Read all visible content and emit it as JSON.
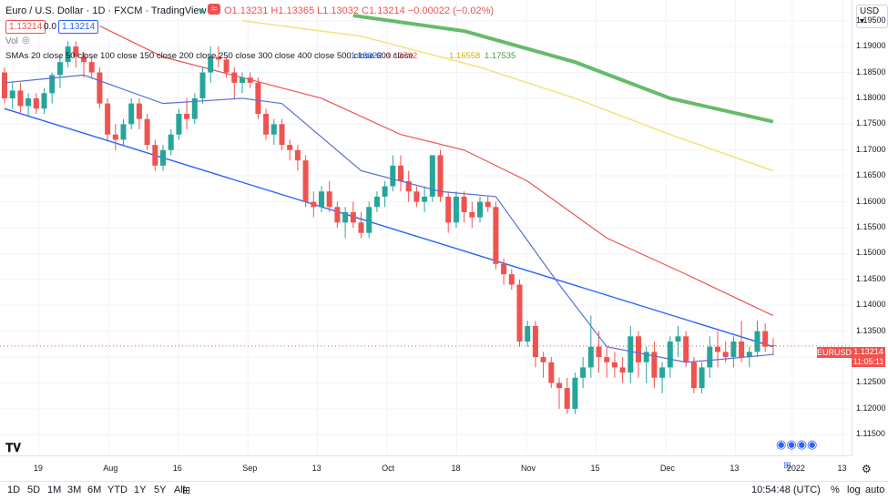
{
  "header": {
    "title": "Euro / U.S. Dollar · 1D · FXCM · TradingView",
    "ohlc": "O1.13231 H1.13365 L1.13032 C1.13214 −0.00022 (−0.02%)",
    "bid": "1.13214",
    "spread": "0.0",
    "ask": "1.13214",
    "vol_label": "Vol",
    "sma_label": "SMAs 20 close 50 close 100 close 150 close 200 close 250 close 300 close 400 close 500 close 600 close",
    "sma_values": [
      "1.13022",
      "1.13792",
      "1.16558",
      "1.17535"
    ],
    "currency": "USD",
    "symbol_tag": "EURUSD",
    "price_tag": "1.13214",
    "countdown": "11:05:11"
  },
  "colors": {
    "up": "#26a69a",
    "down": "#ef5350",
    "sma20": "#5b6fd6",
    "sma50": "#ef5350",
    "sma100": "#f5e27a",
    "sma150": "#66bb6a",
    "trend": "#2962ff"
  },
  "chart_data": {
    "type": "candlestick",
    "y_ticks": [
      "1.11500",
      "1.12000",
      "1.12500",
      "1.13000",
      "1.13500",
      "1.14000",
      "1.14500",
      "1.15000",
      "1.15500",
      "1.16000",
      "1.16500",
      "1.17000",
      "1.17500",
      "1.18000",
      "1.18500",
      "1.19000",
      "1.19500"
    ],
    "x_ticks": [
      "19",
      "Aug",
      "16",
      "Sep",
      "13",
      "Oct",
      "18",
      "Nov",
      "15",
      "Dec",
      "13",
      "2022",
      "13"
    ],
    "ylim": [
      1.111,
      1.199
    ],
    "candles": [
      [
        1.185,
        1.186,
        1.179,
        1.18
      ],
      [
        1.18,
        1.183,
        1.178,
        1.1815
      ],
      [
        1.1815,
        1.183,
        1.177,
        1.1785
      ],
      [
        1.1785,
        1.181,
        1.1765,
        1.18
      ],
      [
        1.18,
        1.181,
        1.177,
        1.178
      ],
      [
        1.178,
        1.182,
        1.177,
        1.181
      ],
      [
        1.181,
        1.185,
        1.179,
        1.1845
      ],
      [
        1.1845,
        1.188,
        1.182,
        1.187
      ],
      [
        1.187,
        1.191,
        1.186,
        1.19
      ],
      [
        1.19,
        1.191,
        1.186,
        1.188
      ],
      [
        1.188,
        1.189,
        1.184,
        1.187
      ],
      [
        1.187,
        1.188,
        1.184,
        1.185
      ],
      [
        1.185,
        1.186,
        1.178,
        1.179
      ],
      [
        1.179,
        1.18,
        1.172,
        1.173
      ],
      [
        1.173,
        1.175,
        1.17,
        1.172
      ],
      [
        1.172,
        1.176,
        1.171,
        1.175
      ],
      [
        1.175,
        1.18,
        1.174,
        1.179
      ],
      [
        1.179,
        1.18,
        1.174,
        1.176
      ],
      [
        1.176,
        1.177,
        1.17,
        1.171
      ],
      [
        1.171,
        1.172,
        1.166,
        1.167
      ],
      [
        1.167,
        1.171,
        1.166,
        1.17
      ],
      [
        1.17,
        1.174,
        1.169,
        1.173
      ],
      [
        1.173,
        1.178,
        1.172,
        1.177
      ],
      [
        1.177,
        1.18,
        1.174,
        1.176
      ],
      [
        1.176,
        1.181,
        1.175,
        1.18
      ],
      [
        1.18,
        1.186,
        1.179,
        1.185
      ],
      [
        1.185,
        1.19,
        1.183,
        1.188
      ],
      [
        1.188,
        1.19,
        1.186,
        1.1875
      ],
      [
        1.1875,
        1.188,
        1.184,
        1.185
      ],
      [
        1.185,
        1.186,
        1.18,
        1.183
      ],
      [
        1.183,
        1.185,
        1.181,
        1.184
      ],
      [
        1.184,
        1.185,
        1.182,
        1.183
      ],
      [
        1.183,
        1.184,
        1.176,
        1.177
      ],
      [
        1.177,
        1.178,
        1.172,
        1.173
      ],
      [
        1.173,
        1.176,
        1.171,
        1.175
      ],
      [
        1.175,
        1.176,
        1.17,
        1.171
      ],
      [
        1.171,
        1.172,
        1.168,
        1.17
      ],
      [
        1.17,
        1.171,
        1.166,
        1.168
      ],
      [
        1.168,
        1.169,
        1.159,
        1.16
      ],
      [
        1.16,
        1.162,
        1.157,
        1.159
      ],
      [
        1.159,
        1.163,
        1.158,
        1.162
      ],
      [
        1.162,
        1.164,
        1.158,
        1.159
      ],
      [
        1.159,
        1.16,
        1.155,
        1.156
      ],
      [
        1.156,
        1.159,
        1.153,
        1.158
      ],
      [
        1.158,
        1.16,
        1.155,
        1.156
      ],
      [
        1.156,
        1.158,
        1.153,
        1.154
      ],
      [
        1.154,
        1.16,
        1.153,
        1.159
      ],
      [
        1.159,
        1.162,
        1.158,
        1.161
      ],
      [
        1.161,
        1.164,
        1.159,
        1.163
      ],
      [
        1.163,
        1.169,
        1.162,
        1.167
      ],
      [
        1.167,
        1.169,
        1.162,
        1.164
      ],
      [
        1.164,
        1.166,
        1.16,
        1.162
      ],
      [
        1.162,
        1.163,
        1.159,
        1.16
      ],
      [
        1.16,
        1.163,
        1.158,
        1.161
      ],
      [
        1.161,
        1.169,
        1.16,
        1.169
      ],
      [
        1.169,
        1.17,
        1.16,
        1.161
      ],
      [
        1.161,
        1.162,
        1.154,
        1.156
      ],
      [
        1.156,
        1.162,
        1.155,
        1.161
      ],
      [
        1.161,
        1.162,
        1.156,
        1.158
      ],
      [
        1.158,
        1.16,
        1.155,
        1.157
      ],
      [
        1.157,
        1.161,
        1.156,
        1.16
      ],
      [
        1.16,
        1.161,
        1.158,
        1.159
      ],
      [
        1.159,
        1.16,
        1.147,
        1.148
      ],
      [
        1.148,
        1.149,
        1.144,
        1.146
      ],
      [
        1.146,
        1.147,
        1.143,
        1.144
      ],
      [
        1.144,
        1.145,
        1.132,
        1.133
      ],
      [
        1.133,
        1.137,
        1.132,
        1.136
      ],
      [
        1.136,
        1.137,
        1.128,
        1.13
      ],
      [
        1.13,
        1.131,
        1.126,
        1.129
      ],
      [
        1.129,
        1.13,
        1.124,
        1.125
      ],
      [
        1.125,
        1.126,
        1.12,
        1.124
      ],
      [
        1.124,
        1.126,
        1.119,
        1.12
      ],
      [
        1.12,
        1.127,
        1.119,
        1.126
      ],
      [
        1.126,
        1.13,
        1.124,
        1.128
      ],
      [
        1.128,
        1.138,
        1.126,
        1.132
      ],
      [
        1.132,
        1.135,
        1.127,
        1.13
      ],
      [
        1.13,
        1.132,
        1.126,
        1.129
      ],
      [
        1.129,
        1.131,
        1.126,
        1.128
      ],
      [
        1.128,
        1.13,
        1.125,
        1.127
      ],
      [
        1.127,
        1.136,
        1.125,
        1.134
      ],
      [
        1.134,
        1.135,
        1.126,
        1.129
      ],
      [
        1.129,
        1.132,
        1.125,
        1.131
      ],
      [
        1.131,
        1.133,
        1.124,
        1.126
      ],
      [
        1.126,
        1.129,
        1.123,
        1.128
      ],
      [
        1.128,
        1.134,
        1.126,
        1.133
      ],
      [
        1.133,
        1.136,
        1.13,
        1.134
      ],
      [
        1.134,
        1.135,
        1.128,
        1.129
      ],
      [
        1.129,
        1.13,
        1.123,
        1.124
      ],
      [
        1.124,
        1.129,
        1.123,
        1.128
      ],
      [
        1.128,
        1.134,
        1.126,
        1.132
      ],
      [
        1.132,
        1.135,
        1.128,
        1.131
      ],
      [
        1.131,
        1.133,
        1.129,
        1.13
      ],
      [
        1.13,
        1.134,
        1.128,
        1.133
      ],
      [
        1.133,
        1.137,
        1.129,
        1.13
      ],
      [
        1.13,
        1.132,
        1.128,
        1.131
      ],
      [
        1.131,
        1.137,
        1.13,
        1.135
      ],
      [
        1.135,
        1.1365,
        1.131,
        1.132
      ],
      [
        1.13231,
        1.13365,
        1.13032,
        1.13214
      ]
    ],
    "sma20": [
      [
        0,
        1.183
      ],
      [
        10,
        1.1845
      ],
      [
        20,
        1.179
      ],
      [
        30,
        1.18
      ],
      [
        35,
        1.179
      ],
      [
        45,
        1.166
      ],
      [
        55,
        1.162
      ],
      [
        62,
        1.161
      ],
      [
        70,
        1.144
      ],
      [
        76,
        1.132
      ],
      [
        86,
        1.129
      ],
      [
        90,
        1.1295
      ],
      [
        97,
        1.1305
      ]
    ],
    "sma50": [
      [
        12,
        1.194
      ],
      [
        20,
        1.188
      ],
      [
        30,
        1.184
      ],
      [
        40,
        1.18
      ],
      [
        50,
        1.173
      ],
      [
        58,
        1.17
      ],
      [
        66,
        1.164
      ],
      [
        76,
        1.153
      ],
      [
        86,
        1.146
      ],
      [
        97,
        1.138
      ]
    ],
    "sma100": [
      [
        30,
        1.195
      ],
      [
        45,
        1.192
      ],
      [
        60,
        1.186
      ],
      [
        72,
        1.18
      ],
      [
        84,
        1.173
      ],
      [
        97,
        1.166
      ]
    ],
    "sma150": [
      [
        44,
        1.196
      ],
      [
        58,
        1.193
      ],
      [
        72,
        1.187
      ],
      [
        84,
        1.18
      ],
      [
        97,
        1.1755
      ]
    ],
    "trendline": [
      [
        0,
        1.178
      ],
      [
        97,
        1.132
      ]
    ]
  },
  "bottom": {
    "ranges": [
      "1D",
      "5D",
      "1M",
      "3M",
      "6M",
      "YTD",
      "1Y",
      "5Y",
      "All"
    ],
    "clock": "10:54:48 (UTC)",
    "pct": "%",
    "log": "log",
    "auto": "auto"
  }
}
